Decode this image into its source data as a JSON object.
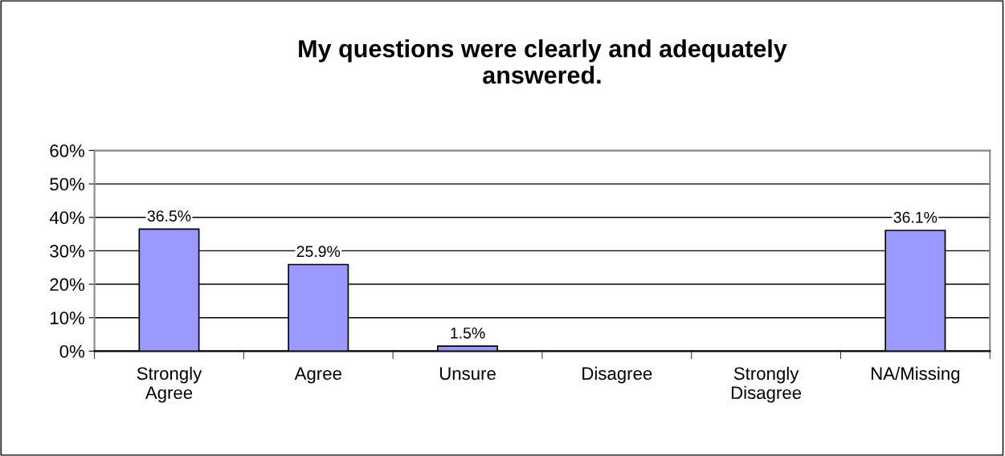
{
  "chart_data": {
    "type": "bar",
    "title": "My questions were clearly and adequately\nanswered.",
    "categories": [
      "Strongly\nAgree",
      "Agree",
      "Unsure",
      "Disagree",
      "Strongly\nDisagree",
      "NA/Missing"
    ],
    "values": [
      36.5,
      25.9,
      1.5,
      null,
      null,
      36.1
    ],
    "value_labels": [
      "36.5%",
      "25.9%",
      "1.5%",
      null,
      null,
      "36.1%"
    ],
    "color": "#9999ff",
    "ylim": [
      0,
      60
    ],
    "yticks": [
      {
        "value": 0,
        "label": "0%"
      },
      {
        "value": 10,
        "label": "10%"
      },
      {
        "value": 20,
        "label": "20%"
      },
      {
        "value": 30,
        "label": "30%"
      },
      {
        "value": 40,
        "label": "40%"
      },
      {
        "value": 50,
        "label": "50%"
      },
      {
        "value": 60,
        "label": "60%"
      }
    ],
    "grid": "y",
    "legend": false
  }
}
